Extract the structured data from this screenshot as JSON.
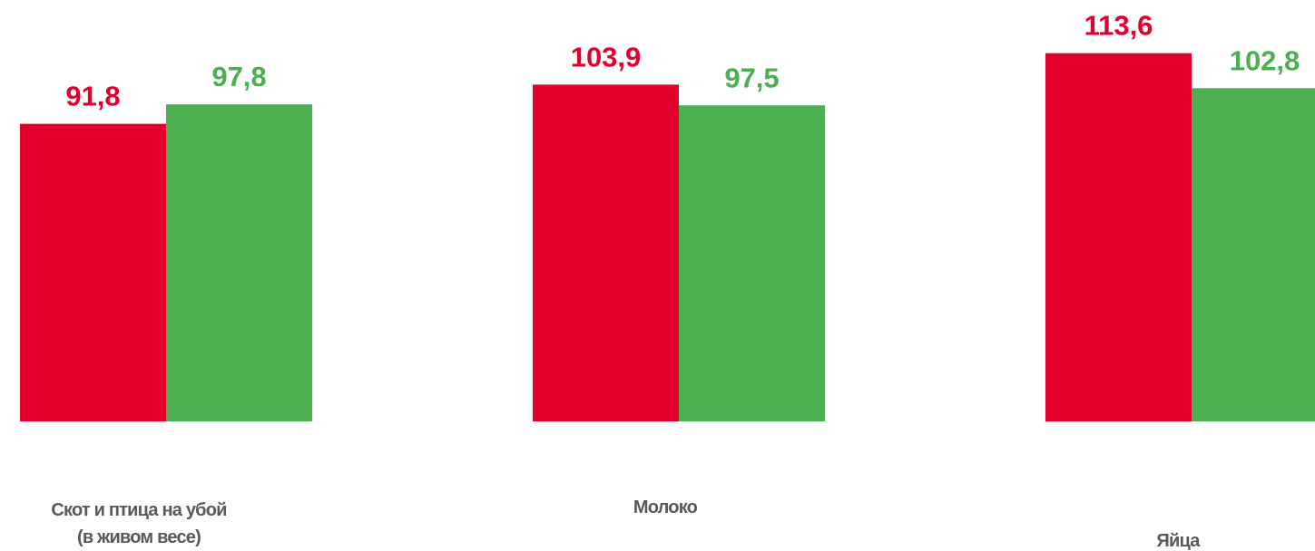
{
  "chart_data": {
    "type": "bar",
    "categories": [
      [
        "Скот и птица на  убой",
        "(в живом весе)"
      ],
      [
        "Молоко"
      ],
      [
        "Яйца"
      ]
    ],
    "series": [
      {
        "color": "#e0002b",
        "values": [
          91.8,
          103.9,
          113.6
        ],
        "value_labels": [
          "91,8",
          "103,9",
          "113,6"
        ]
      },
      {
        "color": "#4caf50",
        "values": [
          97.8,
          97.5,
          102.8
        ],
        "value_labels": [
          "97,8",
          "97,5",
          "102,8"
        ]
      }
    ],
    "ylim": [
      0,
      130
    ]
  }
}
